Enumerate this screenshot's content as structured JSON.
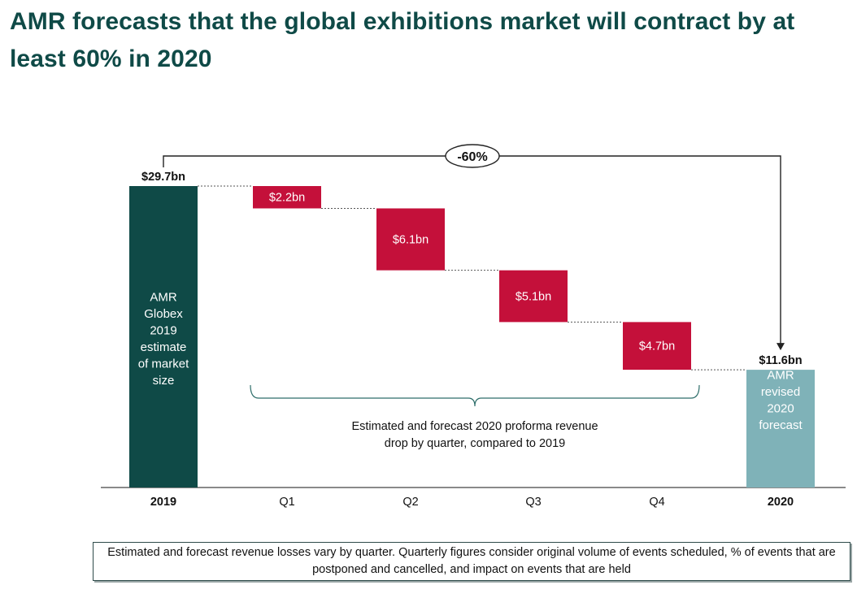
{
  "title": "AMR forecasts that the global exhibitions market will contract by at least 60% in 2020",
  "note": "Estimated and forecast revenue losses vary by quarter. Quarterly figures consider original volume of events scheduled, % of events that are postponed and cancelled, and impact on events that are held",
  "colors": {
    "title": "#0f4a47",
    "start_bar": "#0f4a47",
    "decrease_bar": "#c4103a",
    "end_bar": "#7fb2b8",
    "axis": "#444444",
    "text": "#111111"
  },
  "chart_data": {
    "type": "waterfall",
    "unit": "$bn",
    "ylim": [
      0,
      29.7
    ],
    "categories": [
      "2019",
      "Q1",
      "Q2",
      "Q3",
      "Q4",
      "2020"
    ],
    "category_bold": [
      true,
      false,
      false,
      false,
      false,
      true
    ],
    "bars": [
      {
        "category": "2019",
        "kind": "total",
        "value": 29.7,
        "label": "$29.7bn",
        "inner_label": [
          "AMR",
          "Globex",
          "2019",
          "estimate",
          "of market",
          "size"
        ]
      },
      {
        "category": "Q1",
        "kind": "decrease",
        "value": 2.2,
        "label": "$2.2bn"
      },
      {
        "category": "Q2",
        "kind": "decrease",
        "value": 6.1,
        "label": "$6.1bn"
      },
      {
        "category": "Q3",
        "kind": "decrease",
        "value": 5.1,
        "label": "$5.1bn"
      },
      {
        "category": "Q4",
        "kind": "decrease",
        "value": 4.7,
        "label": "$4.7bn"
      },
      {
        "category": "2020",
        "kind": "total",
        "value": 11.6,
        "label": "$11.6bn",
        "inner_label": [
          "AMR",
          "revised",
          "2020",
          "forecast"
        ]
      }
    ],
    "change_annotation": "-60%",
    "brace_label": [
      "Estimated and forecast 2020 proforma revenue",
      "drop by quarter, compared to 2019"
    ]
  }
}
